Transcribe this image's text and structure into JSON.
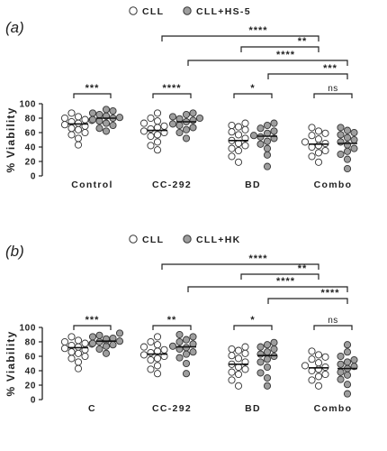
{
  "chart_data": [
    {
      "panel_label": "(a)",
      "type": "scatter",
      "ylabel": "% Viability",
      "ylim": [
        0,
        100
      ],
      "yticks": [
        0,
        20,
        40,
        60,
        80,
        100
      ],
      "categories": [
        "Control",
        "CC-292",
        "BD",
        "Combo"
      ],
      "legend": [
        {
          "label": "CLL",
          "fill": "#ffffff"
        },
        {
          "label": "CLL+HS-5",
          "fill": "#9e9e9e"
        }
      ],
      "legend_position": "top",
      "series": [
        {
          "name": "CLL",
          "groups": [
            [
              43,
              52,
              57,
              60,
              64,
              66,
              69,
              71,
              73,
              75,
              77,
              78,
              80,
              82,
              87
            ],
            [
              36,
              42,
              47,
              55,
              57,
              60,
              62,
              65,
              67,
              69,
              73,
              76,
              80,
              87
            ],
            [
              19,
              27,
              35,
              38,
              42,
              45,
              49,
              52,
              57,
              61,
              64,
              68,
              70,
              73
            ],
            [
              19,
              27,
              32,
              35,
              40,
              42,
              45,
              47,
              51,
              56,
              59,
              62,
              67
            ]
          ],
          "medians": [
            72,
            63,
            49,
            44
          ]
        },
        {
          "name": "CLL+HS-5",
          "groups": [
            [
              62,
              66,
              70,
              73,
              76,
              78,
              80,
              81,
              83,
              85,
              87,
              90,
              92
            ],
            [
              52,
              60,
              64,
              67,
              70,
              72,
              75,
              77,
              79,
              80,
              82,
              85,
              87
            ],
            [
              13,
              29,
              38,
              44,
              48,
              52,
              54,
              56,
              59,
              62,
              66,
              70,
              73
            ],
            [
              10,
              23,
              30,
              34,
              38,
              43,
              47,
              50,
              53,
              57,
              60,
              63,
              67
            ]
          ],
          "medians": [
            80,
            75,
            55,
            45
          ]
        }
      ],
      "significance": [
        {
          "from": "Control:CLL",
          "to": "Control:CLL+HS-5",
          "label": "***"
        },
        {
          "from": "CC-292:CLL",
          "to": "CC-292:CLL+HS-5",
          "label": "****"
        },
        {
          "from": "BD:CLL",
          "to": "BD:CLL+HS-5",
          "label": "*"
        },
        {
          "from": "Combo:CLL",
          "to": "Combo:CLL+HS-5",
          "label": "ns"
        },
        {
          "from": "CC-292:CLL",
          "to": "Combo:CLL",
          "label": "****"
        },
        {
          "from": "BD:CLL",
          "to": "Combo:CLL",
          "label": "**"
        },
        {
          "from": "CC-292:CLL+HS-5",
          "to": "Combo:CLL+HS-5",
          "label": "****"
        },
        {
          "from": "BD:CLL+HS-5",
          "to": "Combo:CLL+HS-5",
          "label": "***"
        }
      ]
    },
    {
      "panel_label": "(b)",
      "type": "scatter",
      "ylabel": "% Viability",
      "ylim": [
        0,
        100
      ],
      "yticks": [
        0,
        20,
        40,
        60,
        80,
        100
      ],
      "categories": [
        "C",
        "CC-292",
        "BD",
        "Combo"
      ],
      "legend": [
        {
          "label": "CLL",
          "fill": "#ffffff"
        },
        {
          "label": "CLL+HK",
          "fill": "#9e9e9e"
        }
      ],
      "legend_position": "top",
      "series": [
        {
          "name": "CLL",
          "groups": [
            [
              43,
              52,
              57,
              60,
              64,
              66,
              69,
              71,
              73,
              75,
              77,
              78,
              80,
              82,
              87
            ],
            [
              36,
              42,
              47,
              55,
              57,
              60,
              62,
              65,
              67,
              69,
              73,
              76,
              80,
              87
            ],
            [
              19,
              27,
              35,
              38,
              42,
              45,
              49,
              52,
              57,
              61,
              64,
              68,
              70,
              73
            ],
            [
              19,
              27,
              32,
              35,
              40,
              42,
              45,
              47,
              51,
              56,
              59,
              62,
              67
            ]
          ],
          "medians": [
            72,
            63,
            49,
            44
          ]
        },
        {
          "name": "CLL+HK",
          "groups": [
            [
              64,
              70,
              74,
              76,
              78,
              80,
              81,
              82,
              84,
              85,
              87,
              89,
              92
            ],
            [
              36,
              50,
              58,
              63,
              66,
              70,
              72,
              74,
              77,
              80,
              83,
              87,
              90
            ],
            [
              19,
              30,
              37,
              45,
              52,
              56,
              60,
              63,
              66,
              70,
              73,
              76,
              79
            ],
            [
              8,
              21,
              28,
              34,
              38,
              43,
              46,
              49,
              52,
              55,
              60,
              66,
              76
            ]
          ],
          "medians": [
            81,
            73,
            61,
            43
          ]
        }
      ],
      "significance": [
        {
          "from": "C:CLL",
          "to": "C:CLL+HK",
          "label": "***"
        },
        {
          "from": "CC-292:CLL",
          "to": "CC-292:CLL+HK",
          "label": "**"
        },
        {
          "from": "BD:CLL",
          "to": "BD:CLL+HK",
          "label": "*"
        },
        {
          "from": "Combo:CLL",
          "to": "Combo:CLL+HK",
          "label": "ns"
        },
        {
          "from": "CC-292:CLL",
          "to": "Combo:CLL",
          "label": "****"
        },
        {
          "from": "BD:CLL",
          "to": "Combo:CLL",
          "label": "**"
        },
        {
          "from": "CC-292:CLL+HK",
          "to": "Combo:CLL+HK",
          "label": "****"
        },
        {
          "from": "BD:CLL+HK",
          "to": "Combo:CLL+HK",
          "label": "****"
        }
      ]
    }
  ]
}
